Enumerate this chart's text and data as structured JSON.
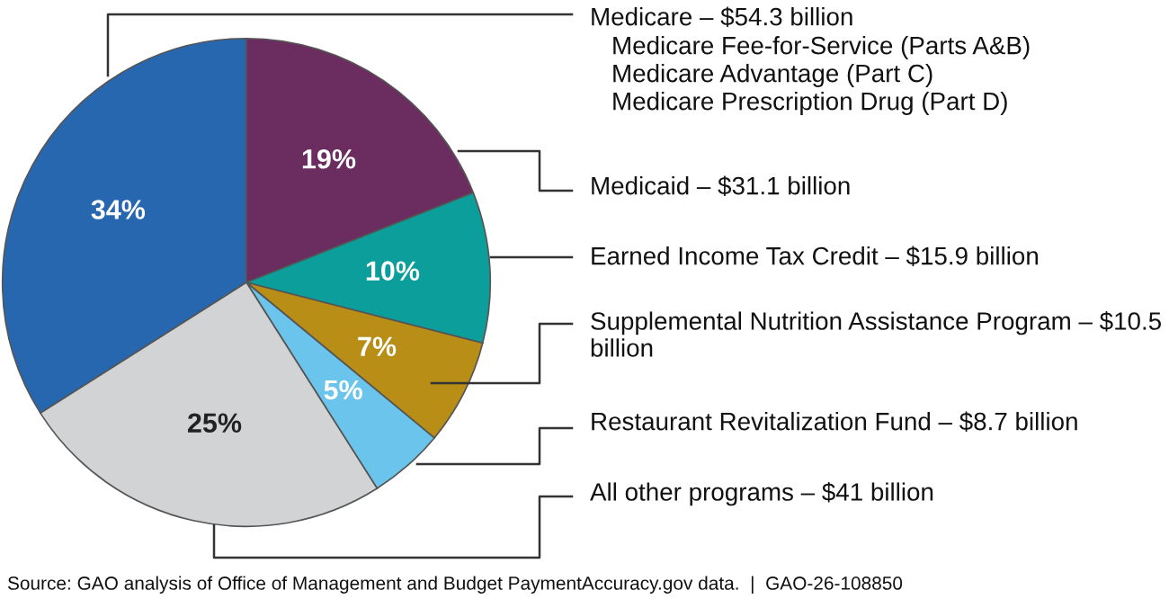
{
  "chart_data": {
    "type": "pie",
    "categories": [
      "Medicare – $54.3 billion",
      "Medicaid – $31.1 billion",
      "Earned Income Tax Credit – $15.9 billion",
      "Supplemental Nutrition Assistance Program – $10.5 billion",
      "Restaurant Revitalization Fund – $8.7 billion",
      "All other programs – $41 billion"
    ],
    "values": [
      34,
      19,
      10,
      7,
      5,
      25
    ],
    "colors": [
      "#2767b0",
      "#6b2c5f",
      "#0c9e9a",
      "#b88e17",
      "#6ac4ec",
      "#d2d3d5"
    ],
    "value_labels": [
      "34%",
      "19%",
      "10%",
      "7%",
      "5%",
      "25%"
    ],
    "annotations": [
      "Medicare Fee-for-Service (Parts A&B)",
      "Medicare Advantage (Part C)",
      "Medicare Prescription Drug (Part D)",
      "Source: GAO analysis of Office of Management and Budget PaymentAccuracy.gov data.  |  GAO-26-108850"
    ]
  }
}
